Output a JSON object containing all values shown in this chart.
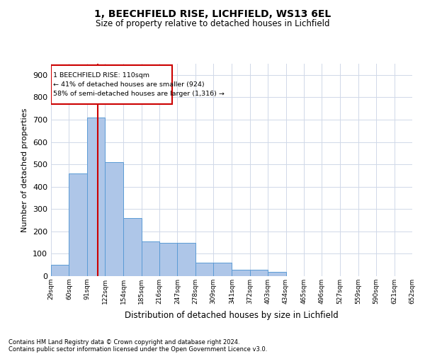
{
  "title_line1": "1, BEECHFIELD RISE, LICHFIELD, WS13 6EL",
  "title_line2": "Size of property relative to detached houses in Lichfield",
  "xlabel": "Distribution of detached houses by size in Lichfield",
  "ylabel": "Number of detached properties",
  "annotation_line1": "1 BEECHFIELD RISE: 110sqm",
  "annotation_line2": "← 41% of detached houses are smaller (924)",
  "annotation_line3": "58% of semi-detached houses are larger (1,316) →",
  "footnote1": "Contains HM Land Registry data © Crown copyright and database right 2024.",
  "footnote2": "Contains public sector information licensed under the Open Government Licence v3.0.",
  "bar_color": "#aec6e8",
  "bar_edge_color": "#5b9bd5",
  "vline_color": "#cc0000",
  "vline_x": 110,
  "background_color": "#ffffff",
  "grid_color": "#d0d8e8",
  "bin_edges": [
    29,
    60,
    91,
    122,
    154,
    185,
    216,
    247,
    278,
    309,
    341,
    372,
    403,
    434,
    465,
    496,
    527,
    559,
    590,
    621,
    652
  ],
  "bin_heights": [
    50,
    460,
    710,
    510,
    260,
    155,
    150,
    150,
    60,
    60,
    28,
    28,
    18,
    0,
    0,
    0,
    0,
    0,
    0,
    0
  ],
  "ylim": [
    0,
    950
  ],
  "yticks": [
    0,
    100,
    200,
    300,
    400,
    500,
    600,
    700,
    800,
    900
  ]
}
